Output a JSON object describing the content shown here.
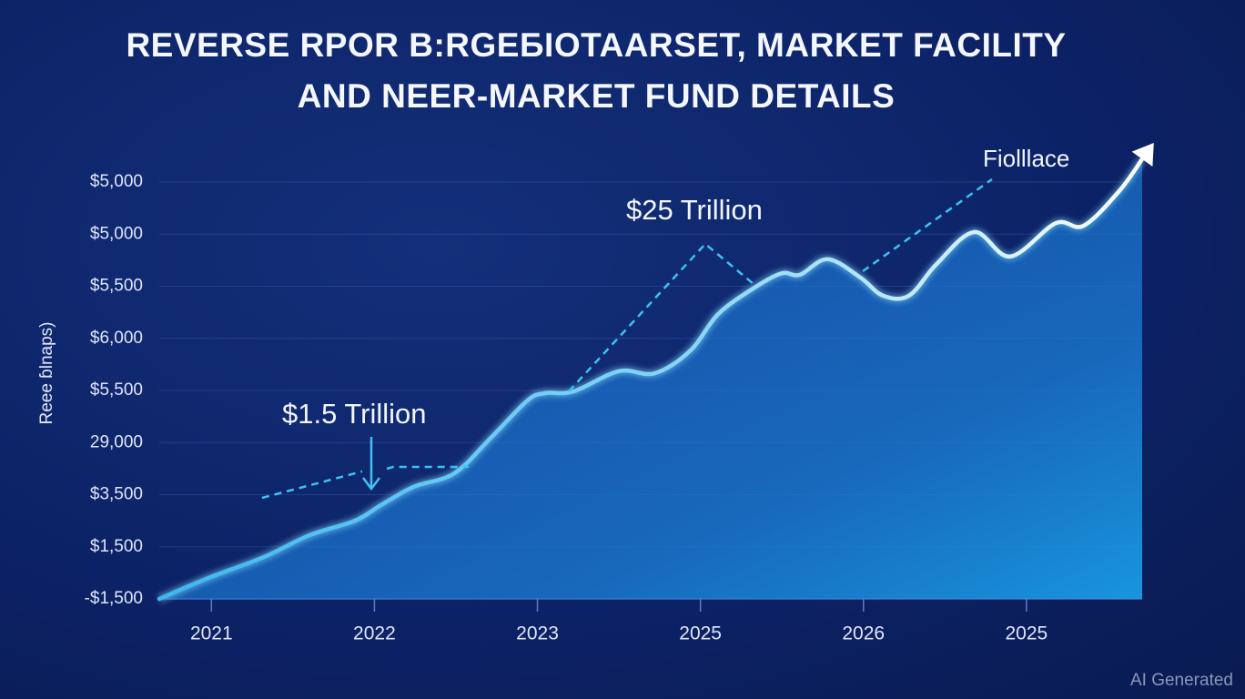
{
  "chart_data": {
    "type": "line",
    "title": [
      "REVERSE RPOR B:RGEБIOTAARSET, MARKET FACILITY",
      "AND NEER-MARKET FUND DETAILS"
    ],
    "y_label": "Reee ɓlnaps)",
    "xlim": [
      -0.32,
      5.71
    ],
    "xticks": [
      {
        "value": 0,
        "label": "2021"
      },
      {
        "value": 1,
        "label": "2022"
      },
      {
        "value": 2,
        "label": "2023"
      },
      {
        "value": 3,
        "label": "2025"
      },
      {
        "value": 4,
        "label": "2026"
      },
      {
        "value": 5,
        "label": "2025"
      }
    ],
    "ylim": [
      0,
      8
    ],
    "yticks": [
      {
        "value": 0,
        "label": "-$1,500"
      },
      {
        "value": 1,
        "label": "$1,500"
      },
      {
        "value": 2,
        "label": "$3,500"
      },
      {
        "value": 3,
        "label": "29,000"
      },
      {
        "value": 4,
        "label": "$5,500"
      },
      {
        "value": 5,
        "label": "$6,000"
      },
      {
        "value": 6,
        "label": "$5,500"
      },
      {
        "value": 7,
        "label": "$5,000"
      },
      {
        "value": 8,
        "label": "$5,000"
      }
    ],
    "grid": true,
    "series": [
      {
        "color": "#7fd3f7",
        "x": [
          -0.32,
          -0.02,
          0.32,
          0.6,
          0.88,
          1.04,
          1.24,
          1.49,
          1.72,
          1.94,
          2.05,
          2.22,
          2.5,
          2.72,
          2.94,
          3.11,
          3.34,
          3.5,
          3.61,
          3.78,
          3.98,
          4.12,
          4.28,
          4.45,
          4.68,
          4.9,
          5.18,
          5.35,
          5.57,
          5.71
        ],
        "values": [
          0,
          0.4,
          0.8,
          1.22,
          1.5,
          1.8,
          2.15,
          2.41,
          3.11,
          3.81,
          3.95,
          3.98,
          4.37,
          4.33,
          4.77,
          5.47,
          5.99,
          6.25,
          6.22,
          6.52,
          6.17,
          5.82,
          5.82,
          6.43,
          7.04,
          6.57,
          7.21,
          7.16,
          7.83,
          8.44
        ]
      }
    ],
    "annotations": [
      "$1.5 Trillion",
      "$25 Trillion",
      "Fiolllace"
    ],
    "watermark": "AI Generated"
  }
}
